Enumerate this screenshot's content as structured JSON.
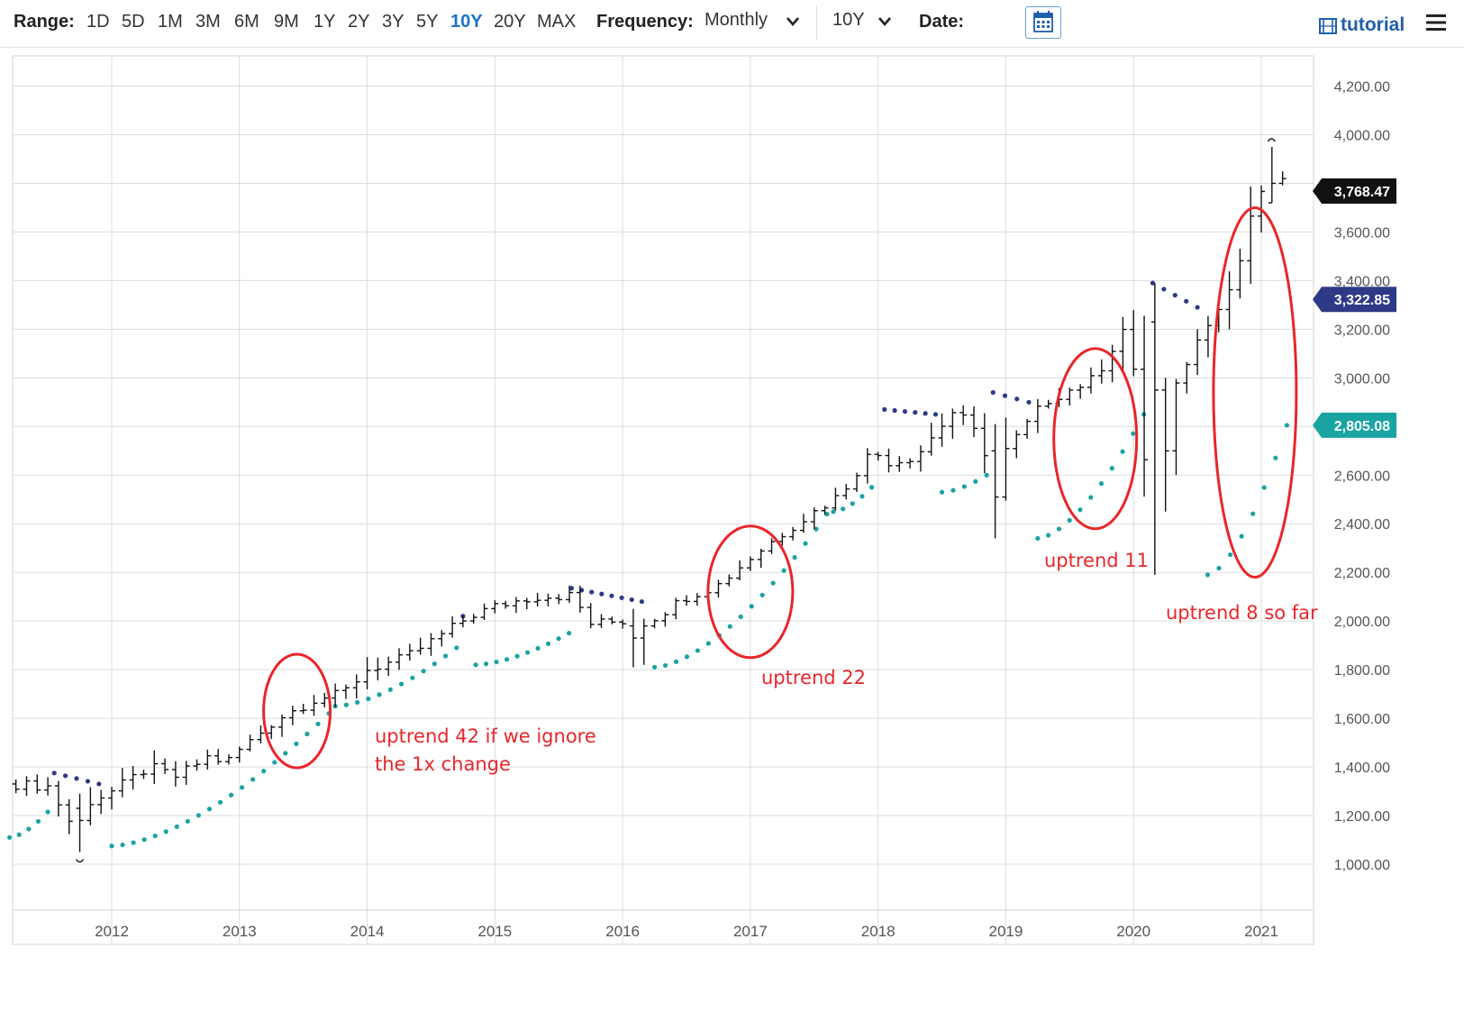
{
  "toolbar": {
    "range_label": "Range:",
    "ranges": [
      "1D",
      "5D",
      "1M",
      "3M",
      "6M",
      "9M",
      "1Y",
      "2Y",
      "3Y",
      "5Y",
      "10Y",
      "20Y",
      "MAX"
    ],
    "active_range": "10Y",
    "frequency_label": "Frequency:",
    "frequency_value": "Monthly",
    "period_value": "10Y",
    "date_label": "Date:",
    "tutorial_label": "tutorial",
    "icons": [
      "calendar-icon",
      "chevron-down-icon",
      "tutorial-icon",
      "menu-icon"
    ]
  },
  "chart_data": {
    "type": "ohlc",
    "title": "",
    "xlabel": "",
    "ylabel": "",
    "x_tick_labels": [
      "2012",
      "2013",
      "2014",
      "2015",
      "2016",
      "2017",
      "2018",
      "2019",
      "2020",
      "2021"
    ],
    "y_tick_labels": [
      "1,000.00",
      "1,200.00",
      "1,400.00",
      "1,600.00",
      "1,800.00",
      "2,000.00",
      "2,200.00",
      "2,400.00",
      "2,600.00",
      "2,800.00",
      "3,000.00",
      "3,200.00",
      "3,400.00",
      "3,600.00",
      "3,800.00",
      "4,000.00",
      "4,200.00"
    ],
    "ylim": [
      850,
      4320
    ],
    "xlim": [
      2011.2,
      2021.45
    ],
    "grid": true,
    "frequency": "monthly",
    "price_badges": [
      {
        "value": "3,768.47",
        "color": "#111111"
      },
      {
        "value": "3,322.85",
        "color": "#2e3a87"
      },
      {
        "value": "2,805.08",
        "color": "#1aa3a3"
      }
    ],
    "series_colors": {
      "bars": "#111111",
      "sar_below": "#1aa3a3",
      "sar_above": "#2e3a87",
      "annotation": "#e8262b"
    },
    "anchors": [
      [
        2011.2,
        1330
      ],
      [
        2011.5,
        1320
      ],
      [
        2011.7,
        1150
      ],
      [
        2011.8,
        1250
      ],
      [
        2012.0,
        1300
      ],
      [
        2012.3,
        1400
      ],
      [
        2012.5,
        1360
      ],
      [
        2012.75,
        1440
      ],
      [
        2012.9,
        1420
      ],
      [
        2013.0,
        1470
      ],
      [
        2013.3,
        1600
      ],
      [
        2013.6,
        1680
      ],
      [
        2013.8,
        1700
      ],
      [
        2014.0,
        1800
      ],
      [
        2014.3,
        1850
      ],
      [
        2014.6,
        1950
      ],
      [
        2014.8,
        2020
      ],
      [
        2015.0,
        2060
      ],
      [
        2015.3,
        2100
      ],
      [
        2015.6,
        2105
      ],
      [
        2015.75,
        1990
      ],
      [
        2016.0,
        2000
      ],
      [
        2016.15,
        1980
      ],
      [
        2016.5,
        2100
      ],
      [
        2016.75,
        2150
      ],
      [
        2017.0,
        2260
      ],
      [
        2017.3,
        2380
      ],
      [
        2017.7,
        2520
      ],
      [
        2017.95,
        2700
      ],
      [
        2018.1,
        2650
      ],
      [
        2018.3,
        2680
      ],
      [
        2018.6,
        2870
      ],
      [
        2018.8,
        2750
      ],
      [
        2018.92,
        2550
      ],
      [
        2019.0,
        2700
      ],
      [
        2019.3,
        2900
      ],
      [
        2019.5,
        2950
      ],
      [
        2019.7,
        3000
      ],
      [
        2019.95,
        3230
      ],
      [
        2020.1,
        2600
      ],
      [
        2020.2,
        2650
      ],
      [
        2020.35,
        3000
      ],
      [
        2020.6,
        3250
      ],
      [
        2020.8,
        3400
      ],
      [
        2020.9,
        3650
      ],
      [
        2021.05,
        3800
      ],
      [
        2021.2,
        3800
      ]
    ],
    "overrides": {
      "2011.75": [
        1230,
        1050,
        1290,
        1180
      ],
      "2015.6": [
        2100,
        1870,
        2140,
        2050
      ],
      "2016.08": [
        1980,
        1810,
        2050,
        1930
      ],
      "2016.17": [
        1930,
        1820,
        2010,
        1980
      ],
      "2018.92": [
        2700,
        2340,
        2810,
        2510
      ],
      "2020.17": [
        3230,
        2190,
        3390,
        2950
      ],
      "2020.25": [
        2950,
        2450,
        3000,
        2700
      ],
      "2021.08": [
        3720,
        3720,
        3950,
        3800
      ]
    },
    "sar_segments": [
      {
        "side": "below",
        "start": 2011.2,
        "end": 2011.5,
        "from": 1110,
        "to": 1215
      },
      {
        "side": "above",
        "start": 2011.55,
        "end": 2011.9,
        "from": 1375,
        "to": 1330
      },
      {
        "side": "below",
        "start": 2012.0,
        "end": 2013.7,
        "from": 1075,
        "to": 1620
      },
      {
        "side": "below",
        "start": 2013.75,
        "end": 2014.7,
        "from": 1650,
        "to": 1890
      },
      {
        "side": "above",
        "start": 2014.75,
        "end": 2014.75,
        "from": 2020,
        "to": 2020
      },
      {
        "side": "below",
        "start": 2014.85,
        "end": 2015.58,
        "from": 1820,
        "to": 1950
      },
      {
        "side": "above",
        "start": 2015.6,
        "end": 2016.15,
        "from": 2135,
        "to": 2080
      },
      {
        "side": "below",
        "start": 2016.25,
        "end": 2017.6,
        "from": 1810,
        "to": 2440
      },
      {
        "side": "below",
        "start": 2017.65,
        "end": 2017.95,
        "from": 2450,
        "to": 2550
      },
      {
        "side": "above",
        "start": 2018.05,
        "end": 2018.45,
        "from": 2870,
        "to": 2850
      },
      {
        "side": "below",
        "start": 2018.5,
        "end": 2018.85,
        "from": 2530,
        "to": 2600
      },
      {
        "side": "above",
        "start": 2018.9,
        "end": 2019.18,
        "from": 2940,
        "to": 2900
      },
      {
        "side": "below",
        "start": 2019.25,
        "end": 2020.08,
        "from": 2340,
        "to": 2850
      },
      {
        "side": "above",
        "start": 2020.15,
        "end": 2020.5,
        "from": 3390,
        "to": 3290
      },
      {
        "side": "below",
        "start": 2020.58,
        "end": 2021.2,
        "from": 2190,
        "to": 2805
      }
    ],
    "annotations": [
      {
        "text": [
          "uptrend 42 if we ignore",
          "the 1x change"
        ],
        "circle": [
          2013.45,
          1630
        ]
      },
      {
        "text": [
          "uptrend 22"
        ],
        "circle": [
          2017.0,
          2120
        ]
      },
      {
        "text": [
          "uptrend 11"
        ],
        "circle": [
          2019.7,
          2750
        ]
      },
      {
        "text": [
          "uptrend 8 so far"
        ],
        "circle": [
          2020.95,
          2940
        ]
      }
    ]
  }
}
